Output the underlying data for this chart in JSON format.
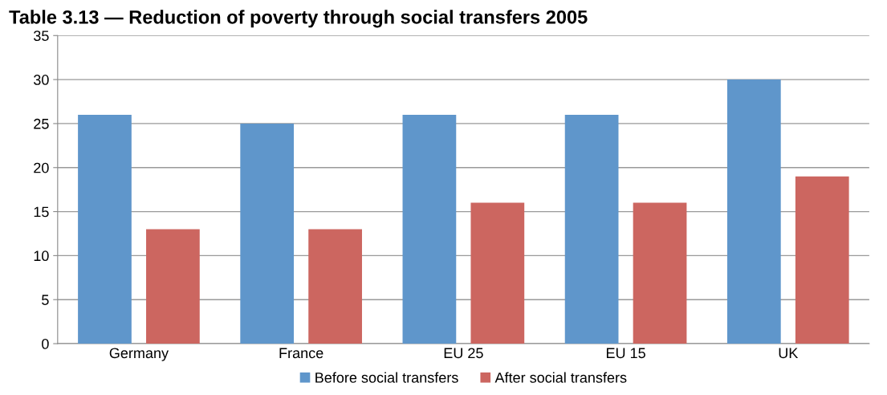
{
  "chart_data": {
    "type": "bar",
    "title": "Table 3.13 — Reduction of poverty through social transfers 2005",
    "categories": [
      "Germany",
      "France",
      "EU 25",
      "EU 15",
      "UK"
    ],
    "series": [
      {
        "name": "Before social transfers",
        "color": "#5f96cb",
        "values": [
          26,
          25,
          26,
          26,
          30
        ]
      },
      {
        "name": "After social transfers",
        "color": "#cc6660",
        "values": [
          13,
          13,
          16,
          16,
          19
        ]
      }
    ],
    "ylim": [
      0,
      35
    ],
    "yticks": [
      0,
      5,
      10,
      15,
      20,
      25,
      30,
      35
    ],
    "grid": "y",
    "legend": "bottom"
  }
}
